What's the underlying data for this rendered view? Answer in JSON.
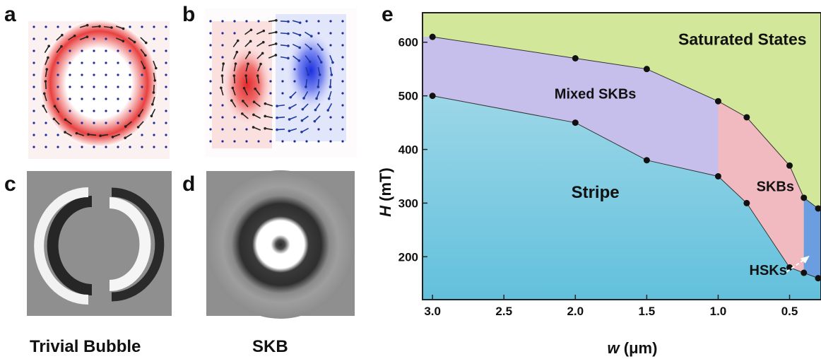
{
  "panel_labels": {
    "a": "a",
    "b": "b",
    "c": "c",
    "d": "d",
    "e": "e"
  },
  "captions": {
    "c": "Trivial Bubble",
    "d": "SKB"
  },
  "chart_data": {
    "type": "area",
    "xlabel_var": "w",
    "xlabel_unit": " (μm)",
    "ylabel_var": "H",
    "ylabel_unit": " (mT)",
    "xlim": [
      3.07,
      0.28
    ],
    "ylim": [
      120,
      655
    ],
    "x_reversed": true,
    "xticks": [
      3.0,
      2.5,
      2.0,
      1.5,
      1.0,
      0.5
    ],
    "yticks": [
      200,
      300,
      400,
      500,
      600
    ],
    "grid": false,
    "series": [
      {
        "name": "Saturated States",
        "x": [
          3.0,
          2.0,
          1.5,
          1.0,
          0.8,
          0.5,
          0.4,
          0.3
        ],
        "y": [
          610,
          570,
          550,
          490,
          460,
          370,
          310,
          290
        ]
      },
      {
        "name": "Mixed SKBs",
        "x": [
          3.0,
          2.0,
          1.5,
          1.0
        ],
        "y": [
          500,
          450,
          380,
          350
        ]
      },
      {
        "name": "SKBs",
        "x": [
          1.0,
          0.8,
          0.5,
          0.4
        ],
        "y": [
          350,
          300,
          180,
          170
        ]
      },
      {
        "name": "HSKs",
        "x": [
          0.4,
          0.3
        ],
        "y": [
          170,
          160
        ]
      }
    ],
    "region_labels": {
      "saturated": "Saturated States",
      "mixed": "Mixed SKBs",
      "skbs": "SKBs",
      "stripe": "Stripe",
      "hsks": "HSKs"
    },
    "colors": {
      "saturated": "#d3e79a",
      "mixed": "#c7bfeb",
      "skbs": "#f1b9c0",
      "stripe_top": "#b3e0ec",
      "stripe_bottom": "#62c0dc",
      "hsks": "#6a9ee0",
      "points": "#111111"
    }
  }
}
